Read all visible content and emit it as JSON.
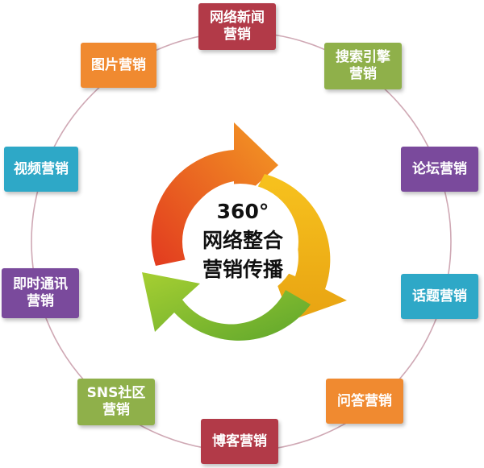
{
  "center": {
    "lines": "360°\n网络整合\n营销传播"
  },
  "nodes": [
    {
      "id": "news",
      "label": "网络新闻\n营销",
      "color": "#b23a48"
    },
    {
      "id": "search",
      "label": "搜索引擎\n营销",
      "color": "#8fb04a"
    },
    {
      "id": "forum",
      "label": "论坛营销",
      "color": "#7a4a9c"
    },
    {
      "id": "topic",
      "label": "话题营销",
      "color": "#2ea8c7"
    },
    {
      "id": "qa",
      "label": "问答营销",
      "color": "#f08a30"
    },
    {
      "id": "blog",
      "label": "博客营销",
      "color": "#b23a48"
    },
    {
      "id": "sns",
      "label": "SNS社区\n营销",
      "color": "#8fb04a"
    },
    {
      "id": "im",
      "label": "即时通讯\n营销",
      "color": "#7a4a9c"
    },
    {
      "id": "video",
      "label": "视频营销",
      "color": "#2ea8c7"
    },
    {
      "id": "image",
      "label": "图片营销",
      "color": "#f08a30"
    }
  ],
  "colors": {
    "ring_line": "#cfa8b4",
    "arrow_red": "#e8552a",
    "arrow_yellow": "#f0b61a",
    "arrow_green": "#7bb52a"
  }
}
